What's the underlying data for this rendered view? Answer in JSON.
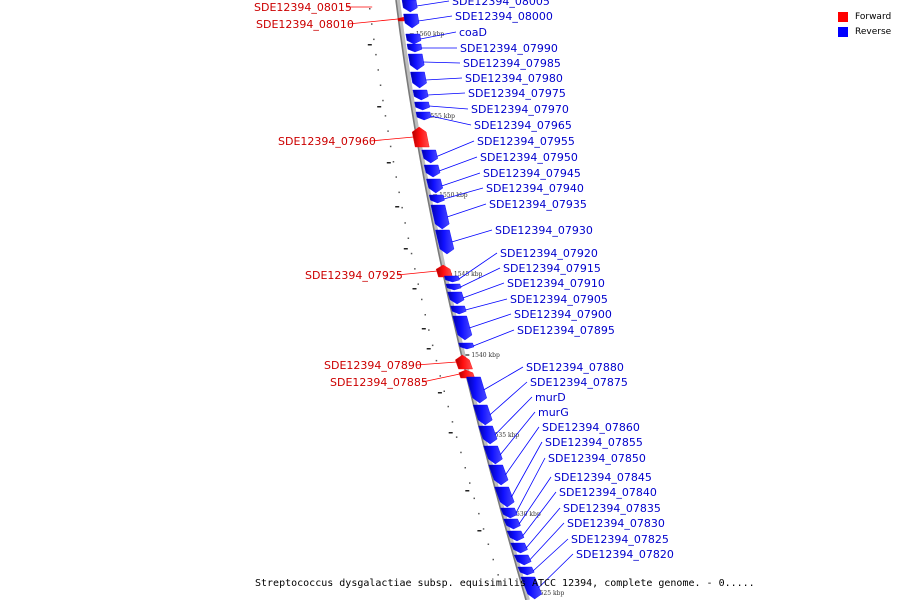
{
  "legend": {
    "forward_label": "Forward",
    "reverse_label": "Reverse",
    "forward_color": "#ff0000",
    "reverse_color": "#0000ff"
  },
  "caption": "Streptococcus dysgalactiae subsp. equisimilis ATCC 12394, complete genome. - 0.....",
  "scale_ticks": [
    {
      "kbp": 1560,
      "label": "1560 kbp"
    },
    {
      "kbp": 1555,
      "label": "1555 kbp"
    },
    {
      "kbp": 1550,
      "label": "1550 kbp"
    },
    {
      "kbp": 1545,
      "label": "1545 kbp"
    },
    {
      "kbp": 1540,
      "label": "1540 kbp"
    },
    {
      "kbp": 1535,
      "label": "1535 kbp"
    },
    {
      "kbp": 1530,
      "label": "1530 kbp"
    },
    {
      "kbp": 1525,
      "label": "1525 kbp"
    }
  ],
  "genes": [
    {
      "name": "SDE12394_08015",
      "strand": "forward"
    },
    {
      "name": "SDE12394_08010",
      "strand": "forward"
    },
    {
      "name": "SDE12394_08005",
      "strand": "reverse"
    },
    {
      "name": "SDE12394_08000",
      "strand": "reverse"
    },
    {
      "name": "coaD",
      "strand": "reverse"
    },
    {
      "name": "SDE12394_07990",
      "strand": "reverse"
    },
    {
      "name": "SDE12394_07985",
      "strand": "reverse"
    },
    {
      "name": "SDE12394_07980",
      "strand": "reverse"
    },
    {
      "name": "SDE12394_07975",
      "strand": "reverse"
    },
    {
      "name": "SDE12394_07970",
      "strand": "reverse"
    },
    {
      "name": "SDE12394_07965",
      "strand": "reverse"
    },
    {
      "name": "SDE12394_07960",
      "strand": "forward"
    },
    {
      "name": "SDE12394_07955",
      "strand": "reverse"
    },
    {
      "name": "SDE12394_07950",
      "strand": "reverse"
    },
    {
      "name": "SDE12394_07945",
      "strand": "reverse"
    },
    {
      "name": "SDE12394_07940",
      "strand": "reverse"
    },
    {
      "name": "SDE12394_07935",
      "strand": "reverse"
    },
    {
      "name": "SDE12394_07930",
      "strand": "reverse"
    },
    {
      "name": "SDE12394_07925",
      "strand": "forward"
    },
    {
      "name": "SDE12394_07920",
      "strand": "reverse"
    },
    {
      "name": "SDE12394_07915",
      "strand": "reverse"
    },
    {
      "name": "SDE12394_07910",
      "strand": "reverse"
    },
    {
      "name": "SDE12394_07905",
      "strand": "reverse"
    },
    {
      "name": "SDE12394_07900",
      "strand": "reverse"
    },
    {
      "name": "SDE12394_07895",
      "strand": "reverse"
    },
    {
      "name": "SDE12394_07890",
      "strand": "forward"
    },
    {
      "name": "SDE12394_07885",
      "strand": "forward"
    },
    {
      "name": "SDE12394_07880",
      "strand": "reverse"
    },
    {
      "name": "SDE12394_07875",
      "strand": "reverse"
    },
    {
      "name": "murD",
      "strand": "reverse"
    },
    {
      "name": "murG",
      "strand": "reverse"
    },
    {
      "name": "SDE12394_07860",
      "strand": "reverse"
    },
    {
      "name": "SDE12394_07855",
      "strand": "reverse"
    },
    {
      "name": "SDE12394_07850",
      "strand": "reverse"
    },
    {
      "name": "SDE12394_07845",
      "strand": "reverse"
    },
    {
      "name": "SDE12394_07840",
      "strand": "reverse"
    },
    {
      "name": "SDE12394_07835",
      "strand": "reverse"
    },
    {
      "name": "SDE12394_07830",
      "strand": "reverse"
    },
    {
      "name": "SDE12394_07825",
      "strand": "reverse"
    },
    {
      "name": "SDE12394_07820",
      "strand": "reverse"
    }
  ]
}
